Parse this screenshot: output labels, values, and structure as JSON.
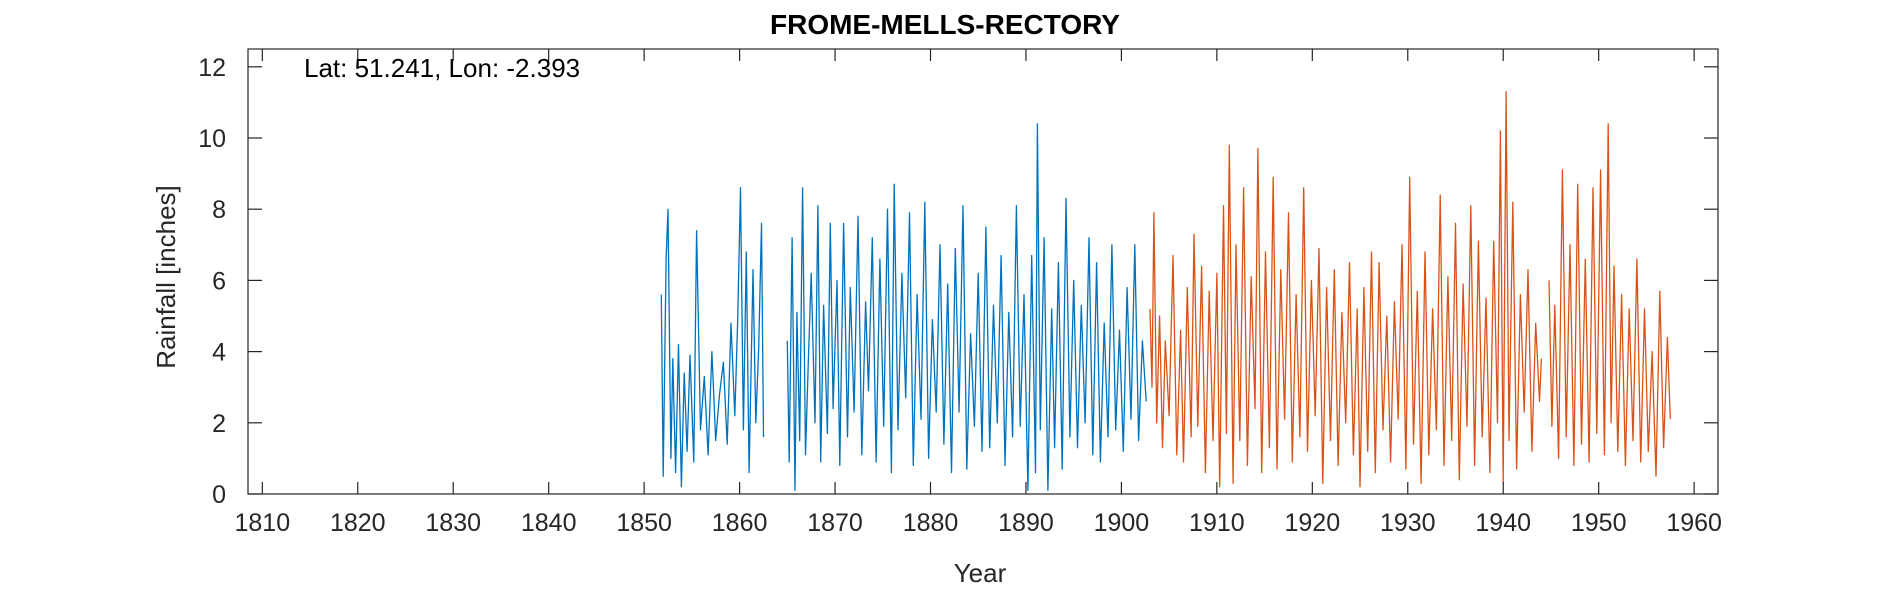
{
  "chart_data": {
    "type": "line",
    "title": "FROME-MELLS-RECTORY",
    "annotation": "Lat: 51.241, Lon: -2.393",
    "xlabel": "Year",
    "ylabel": "Rainfall [inches]",
    "xlim": [
      1808.5,
      1962.5
    ],
    "ylim": [
      0,
      12.5
    ],
    "xticks": [
      1810,
      1820,
      1830,
      1840,
      1850,
      1860,
      1870,
      1880,
      1890,
      1900,
      1910,
      1920,
      1930,
      1940,
      1950,
      1960
    ],
    "yticks": [
      0,
      2,
      4,
      6,
      8,
      10,
      12
    ],
    "grid": false,
    "series": [
      {
        "color": "#0072BD",
        "x": [
          1851.8,
          1852.0,
          1852.3,
          1852.5,
          1852.8,
          1853.0,
          1853.3,
          1853.6,
          1853.9,
          1854.2,
          1854.5,
          1854.8,
          1855.2,
          1855.5,
          1855.9,
          1856.3,
          1856.7,
          1857.1,
          1857.5,
          1857.9,
          1858.3,
          1858.7,
          1859.1,
          1859.5,
          1859.8,
          1860.1,
          1860.4,
          1860.7,
          1861.0,
          1861.4,
          1861.7,
          1862.0,
          1862.3,
          1862.5,
          null,
          1865.0,
          1865.2,
          1865.5,
          1865.8,
          1866.0,
          1866.3,
          1866.6,
          1866.9,
          1867.2,
          1867.5,
          1867.9,
          1868.2,
          1868.5,
          1868.8,
          1869.2,
          1869.5,
          1869.8,
          1870.2,
          1870.5,
          1870.9,
          1871.3,
          1871.6,
          1872.0,
          1872.4,
          1872.8,
          1873.2,
          1873.5,
          1873.9,
          1874.3,
          1874.7,
          1875.1,
          1875.5,
          1875.9,
          1876.2,
          1876.6,
          1877.0,
          1877.4,
          1877.8,
          1878.2,
          1878.6,
          1879.0,
          1879.4,
          1879.8,
          1880.2,
          1880.6,
          1881.0,
          1881.4,
          1881.8,
          1882.2,
          1882.6,
          1883.0,
          1883.4,
          1883.8,
          1884.2,
          1884.6,
          1885.0,
          1885.4,
          1885.8,
          1886.2,
          1886.6,
          1887.0,
          1887.4,
          1887.8,
          1888.2,
          1888.6,
          1889.0,
          1889.4,
          1889.8,
          1890.2,
          1890.6,
          1891.0,
          1891.2,
          1891.5,
          1891.9,
          1892.3,
          1892.7,
          1893.0,
          1893.4,
          1893.8,
          1894.2,
          1894.6,
          1895.0,
          1895.4,
          1895.8,
          1896.2,
          1896.6,
          1897.0,
          1897.4,
          1897.8,
          1898.2,
          1898.6,
          1899.0,
          1899.4,
          1899.8,
          1900.2,
          1900.6,
          1901.0,
          1901.4,
          1901.8,
          1902.2,
          1902.6
        ],
        "y": [
          5.6,
          0.5,
          6.6,
          8.0,
          1.0,
          3.8,
          0.6,
          4.2,
          0.2,
          3.4,
          1.2,
          3.9,
          0.9,
          7.4,
          1.8,
          3.3,
          1.1,
          4.0,
          1.5,
          2.8,
          3.7,
          1.4,
          4.8,
          2.2,
          4.9,
          8.6,
          1.8,
          6.8,
          0.6,
          6.3,
          2.0,
          4.1,
          7.6,
          1.6,
          null,
          4.3,
          0.9,
          7.2,
          0.1,
          5.1,
          1.5,
          8.6,
          1.1,
          3.7,
          6.2,
          2.0,
          8.1,
          0.9,
          5.3,
          1.7,
          7.6,
          2.4,
          6.0,
          0.8,
          7.6,
          1.6,
          5.8,
          2.3,
          7.8,
          1.1,
          5.4,
          2.9,
          7.2,
          0.9,
          6.6,
          1.9,
          8.0,
          0.6,
          8.7,
          1.8,
          6.2,
          2.7,
          7.9,
          0.8,
          5.6,
          2.1,
          8.2,
          1.0,
          4.9,
          2.3,
          7.0,
          1.4,
          5.9,
          0.6,
          6.9,
          2.3,
          8.1,
          0.7,
          4.5,
          1.9,
          6.2,
          1.2,
          7.5,
          1.3,
          5.3,
          2.0,
          6.7,
          0.8,
          5.1,
          1.6,
          8.1,
          1.9,
          5.6,
          0.1,
          6.7,
          0.6,
          10.4,
          1.8,
          7.2,
          0.1,
          5.2,
          1.3,
          6.5,
          0.7,
          8.3,
          1.6,
          6.0,
          1.3,
          5.3,
          2.0,
          7.2,
          1.1,
          6.5,
          0.9,
          4.8,
          1.6,
          7.0,
          1.8,
          4.6,
          1.2,
          5.8,
          2.1,
          7.0,
          1.5,
          4.3,
          2.6
        ]
      },
      {
        "color": "#D95319",
        "x": [
          1903.0,
          1903.2,
          1903.4,
          1903.7,
          1904.0,
          1904.3,
          1904.6,
          1905.0,
          1905.4,
          1905.8,
          1906.2,
          1906.5,
          1906.9,
          1907.3,
          1907.6,
          1908.0,
          1908.4,
          1908.8,
          1909.2,
          1909.6,
          1910.0,
          1910.3,
          1910.7,
          1911.0,
          1911.3,
          1911.7,
          1912.0,
          1912.4,
          1912.8,
          1913.2,
          1913.6,
          1914.0,
          1914.3,
          1914.7,
          1915.1,
          1915.5,
          1915.9,
          1916.3,
          1916.7,
          1917.1,
          1917.5,
          1917.9,
          1918.3,
          1918.7,
          1919.1,
          1919.5,
          1919.9,
          1920.3,
          1920.7,
          1921.1,
          1921.5,
          1921.9,
          1922.3,
          1922.7,
          1923.1,
          1923.5,
          1923.9,
          1924.3,
          1924.7,
          1925.0,
          1925.4,
          1925.8,
          1926.2,
          1926.6,
          1927.0,
          1927.4,
          1927.8,
          1928.2,
          1928.6,
          1929.0,
          1929.4,
          1929.8,
          1930.2,
          1930.6,
          1931.0,
          1931.4,
          1931.8,
          1932.2,
          1932.6,
          1933.0,
          1933.4,
          1933.8,
          1934.2,
          1934.6,
          1935.0,
          1935.4,
          1935.8,
          1936.2,
          1936.6,
          1937.0,
          1937.4,
          1937.8,
          1938.2,
          1938.6,
          1939.0,
          1939.4,
          1939.7,
          1940.0,
          1940.3,
          1940.6,
          1941.0,
          1941.4,
          1941.8,
          1942.2,
          1942.6,
          1943.0,
          1943.4,
          1943.8,
          1944.0,
          null,
          1944.8,
          1945.1,
          1945.4,
          1945.8,
          1946.2,
          1946.6,
          1947.0,
          1947.4,
          1947.8,
          1948.2,
          1948.6,
          1949.0,
          1949.4,
          1949.8,
          1950.2,
          1950.6,
          1951.0,
          1951.3,
          1951.6,
          1952.0,
          1952.4,
          1952.8,
          1953.2,
          1953.6,
          1954.0,
          1954.4,
          1954.8,
          1955.2,
          1955.6,
          1956.0,
          1956.4,
          1956.8,
          1957.2,
          1957.5
        ],
        "y": [
          5.2,
          3.0,
          7.9,
          2.0,
          5.0,
          1.3,
          4.3,
          2.2,
          6.7,
          1.1,
          4.6,
          0.9,
          5.8,
          1.6,
          7.3,
          1.9,
          6.4,
          0.6,
          5.7,
          1.5,
          6.2,
          0.2,
          8.1,
          1.7,
          9.8,
          0.3,
          7.0,
          1.5,
          8.6,
          0.8,
          6.1,
          2.4,
          9.7,
          0.6,
          6.8,
          1.3,
          8.9,
          0.7,
          6.3,
          2.1,
          7.9,
          0.9,
          5.6,
          1.6,
          8.6,
          1.2,
          6.0,
          2.2,
          6.9,
          0.3,
          5.8,
          1.5,
          6.3,
          0.8,
          5.1,
          2.0,
          6.5,
          1.1,
          5.2,
          0.2,
          5.8,
          1.2,
          6.8,
          0.6,
          6.5,
          1.8,
          5.0,
          0.9,
          5.4,
          2.1,
          7.0,
          0.7,
          8.9,
          1.4,
          5.7,
          0.3,
          6.8,
          1.1,
          5.2,
          1.8,
          8.4,
          0.8,
          6.1,
          1.5,
          7.6,
          0.4,
          5.9,
          1.9,
          8.1,
          0.8,
          7.1,
          1.6,
          5.5,
          0.6,
          7.1,
          2.0,
          10.2,
          0.3,
          11.3,
          1.5,
          8.2,
          0.7,
          5.6,
          2.3,
          6.3,
          1.2,
          4.8,
          2.6,
          3.8,
          null,
          6.0,
          1.9,
          5.3,
          1.0,
          9.1,
          1.6,
          7.0,
          0.8,
          8.7,
          1.4,
          6.6,
          0.9,
          8.6,
          1.7,
          9.1,
          1.1,
          10.4,
          2.0,
          6.4,
          1.2,
          5.6,
          0.8,
          5.2,
          1.5,
          6.6,
          0.9,
          5.2,
          1.2,
          4.0,
          0.5,
          5.7,
          1.3,
          4.4,
          2.1
        ]
      }
    ]
  }
}
